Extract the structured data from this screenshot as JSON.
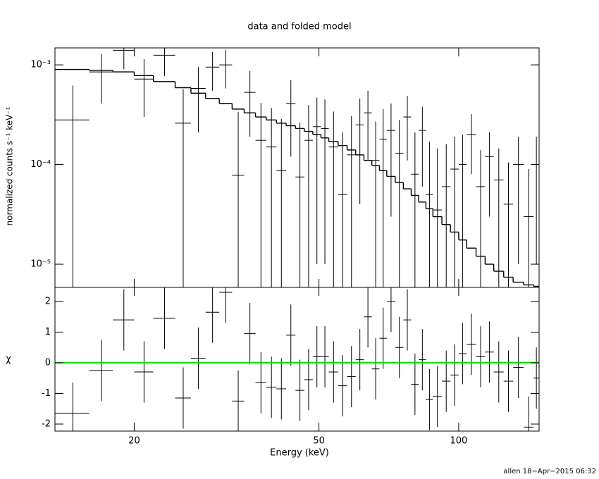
{
  "chart_data": [
    {
      "type": "spectrum",
      "title": "data and folded model",
      "y_label": "normalized counts s⁻¹ keV⁻¹",
      "xscale": "log",
      "yscale": "log",
      "xlim": [
        13.5,
        149
      ],
      "ylim": [
        5.85e-06,
        0.00148
      ],
      "xticks": [
        20,
        50,
        100
      ],
      "yticks": [
        {
          "value": 1e-05,
          "label": "10⁻⁵"
        },
        {
          "value": 0.0001,
          "label": "10⁻⁴"
        },
        {
          "value": 0.001,
          "label": "10⁻³"
        }
      ],
      "x": [
        14.75,
        17,
        19,
        21,
        23.25,
        25.5,
        27.5,
        29.5,
        31.5,
        33.5,
        35.5,
        37.5,
        39.5,
        41.5,
        43.5,
        45.5,
        47.5,
        49.5,
        51.5,
        53.75,
        56.25,
        58.75,
        61.25,
        63.75,
        66.25,
        68.75,
        71.5,
        74.5,
        77.5,
        80.5,
        83.5,
        86.5,
        90,
        94,
        98,
        102,
        106.5,
        111.5,
        116.5,
        122,
        128,
        134.5,
        141.5,
        147
      ],
      "xerr": [
        1.25,
        1,
        1,
        1,
        1.25,
        1,
        1,
        1,
        1,
        1,
        1,
        1,
        1,
        1,
        1,
        1,
        1,
        1,
        1,
        1.25,
        1.25,
        1.25,
        1.25,
        1.25,
        1.25,
        1.25,
        1.5,
        1.5,
        1.5,
        1.5,
        1.5,
        1.5,
        2,
        2,
        2,
        2,
        2.5,
        2.5,
        2.5,
        3,
        3,
        3.5,
        3.5,
        2
      ],
      "data_values": [
        0.00028,
        0.00085,
        0.0014,
        0.00072,
        0.00125,
        0.00026,
        0.00058,
        0.00095,
        0.001,
        7.8e-05,
        0.00053,
        0.000175,
        0.00015,
        8.7e-05,
        0.00041,
        7.5e-05,
        0.000175,
        0.00024,
        0.00023,
        0.00015,
        5e-05,
        0.000125,
        0.00025,
        0.00033,
        0.00011,
        0.00018,
        0.00022,
        0.00013,
        0.0003,
        8e-05,
        0.00022,
        5e-05,
        3.5e-05,
        6e-05,
        9e-05,
        0.0001,
        0.0002,
        6e-05,
        0.00012,
        7e-05,
        4e-05,
        0.0001,
        3e-05,
        0.0001
      ],
      "data_errors": [
        0.00034,
        0.00044,
        0.0005,
        0.00042,
        0.00048,
        0.00031,
        0.00037,
        0.0004,
        0.00042,
        0.00026,
        0.00034,
        0.00024,
        0.00022,
        0.0002,
        0.00029,
        0.00019,
        0.00022,
        0.00023,
        0.00022,
        0.00019,
        0.00016,
        0.00018,
        0.00021,
        0.00022,
        0.00016,
        0.00018,
        0.00019,
        0.00015,
        0.00019,
        0.00013,
        0.00016,
        0.00012,
        0.00011,
        0.0001,
        0.0001,
        0.0001,
        0.00012,
        8e-05,
        9e-05,
        7.5e-05,
        6.5e-05,
        9e-05,
        6e-05,
        9e-05
      ],
      "model_values": [
        0.0009,
        0.00088,
        0.00085,
        0.00078,
        0.00068,
        0.00059,
        0.00052,
        0.00046,
        0.00041,
        0.00036,
        0.00033,
        0.0003,
        0.00028,
        0.00026,
        0.000245,
        0.00023,
        0.000215,
        0.0002,
        0.000185,
        0.00017,
        0.000155,
        0.00014,
        0.000125,
        0.00011,
        9.8e-05,
        8.7e-05,
        7.6e-05,
        6.6e-05,
        5.7e-05,
        4.9e-05,
        4.2e-05,
        3.6e-05,
        3e-05,
        2.5e-05,
        2.1e-05,
        1.75e-05,
        1.45e-05,
        1.2e-05,
        1e-05,
        8.5e-06,
        7.4e-06,
        6.6e-06,
        6.2e-06,
        6e-06
      ],
      "color": "#000000"
    },
    {
      "type": "residual",
      "x_label": "Energy (keV)",
      "y_label": "χ",
      "xscale": "log",
      "xlim": [
        13.5,
        149
      ],
      "ylim": [
        -2.23,
        2.46
      ],
      "xticks": [
        20,
        50,
        100
      ],
      "yticks": [
        -2,
        -1,
        0,
        1,
        2
      ],
      "x": [
        14.75,
        17,
        19,
        21,
        23.25,
        25.5,
        27.5,
        29.5,
        31.5,
        33.5,
        35.5,
        37.5,
        39.5,
        41.5,
        43.5,
        45.5,
        47.5,
        49.5,
        51.5,
        53.75,
        56.25,
        58.75,
        61.25,
        63.75,
        66.25,
        68.75,
        71.5,
        74.5,
        77.5,
        80.5,
        83.5,
        86.5,
        90,
        94,
        98,
        102,
        106.5,
        111.5,
        116.5,
        122,
        128,
        134.5,
        141.5,
        147
      ],
      "xerr": [
        1.25,
        1,
        1,
        1,
        1.25,
        1,
        1,
        1,
        1,
        1,
        1,
        1,
        1,
        1,
        1,
        1,
        1,
        1,
        1,
        1.25,
        1.25,
        1.25,
        1.25,
        1.25,
        1.25,
        1.25,
        1.5,
        1.5,
        1.5,
        1.5,
        1.5,
        1.5,
        2,
        2,
        2,
        2,
        2.5,
        2.5,
        2.5,
        3,
        3,
        3.5,
        3.5,
        2
      ],
      "values": [
        -1.65,
        -0.25,
        1.4,
        -0.3,
        1.45,
        -1.15,
        0.15,
        1.65,
        2.3,
        -1.25,
        0.95,
        -0.65,
        -0.8,
        -0.85,
        0.9,
        -0.9,
        -0.55,
        0.2,
        0.2,
        -0.3,
        -0.75,
        -0.45,
        0.1,
        1.5,
        -0.2,
        0.8,
        2.0,
        0.5,
        1.4,
        -0.7,
        0.1,
        -1.2,
        -1.1,
        -0.6,
        -0.4,
        0.3,
        0.6,
        0.2,
        0.35,
        -0.3,
        -0.6,
        -0.15,
        -2.1,
        -0.5
      ],
      "errors": [
        1,
        1,
        1,
        1,
        1,
        1,
        1,
        1,
        1,
        1,
        1,
        1,
        1,
        1,
        1,
        1,
        1,
        1,
        1,
        1,
        1,
        1,
        1,
        1,
        1,
        1,
        1,
        1,
        1,
        1,
        1,
        1,
        1,
        1,
        1,
        1,
        1,
        1,
        1,
        1,
        1,
        1,
        1,
        1
      ],
      "reference_line": 0,
      "reference_color": "#00e000",
      "color": "#000000"
    }
  ],
  "footer": "allen 18−Apr−2015 06:32"
}
